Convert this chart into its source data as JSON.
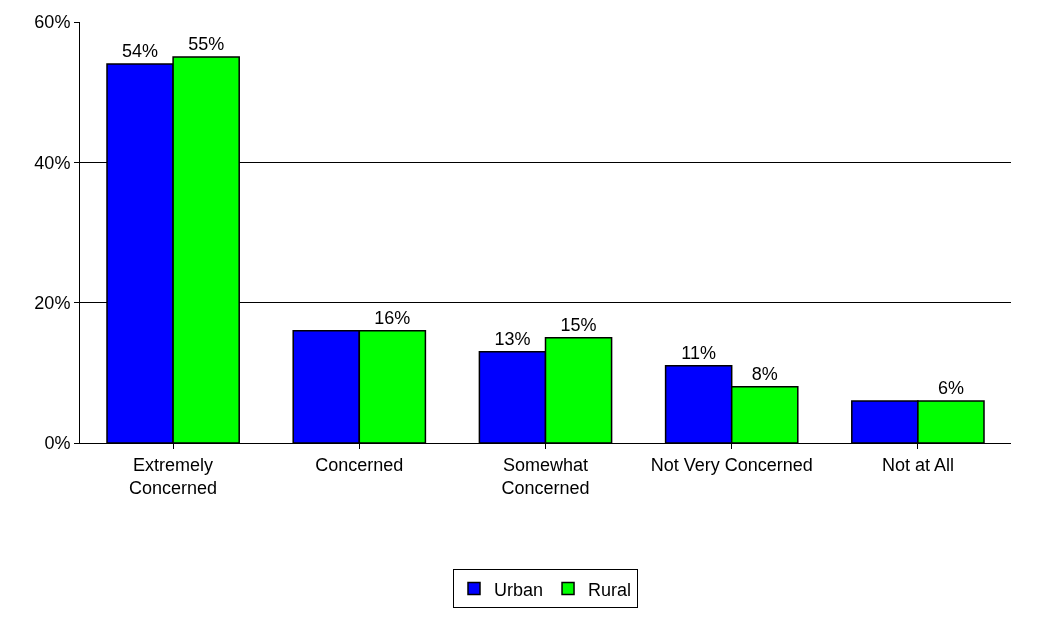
{
  "chart_data": {
    "type": "bar",
    "categories": [
      "Extremely Concerned",
      "Concerned",
      "Somewhat Concerned",
      "Not Very Concerned",
      "Not at All"
    ],
    "series": [
      {
        "name": "Urban",
        "color": "#0000ff",
        "values": [
          54,
          16,
          13,
          11,
          6
        ],
        "value_labels": [
          "54%",
          null,
          "13%",
          "11%",
          null
        ]
      },
      {
        "name": "Rural",
        "color": "#00ff00",
        "values": [
          55,
          16,
          15,
          8,
          6
        ],
        "value_labels": [
          "55%",
          "16%",
          "15%",
          "8%",
          "6%"
        ]
      }
    ],
    "ylim": [
      0,
      60
    ],
    "yticks": [
      {
        "value": 0,
        "label": "0%"
      },
      {
        "value": 20,
        "label": "20%"
      },
      {
        "value": 40,
        "label": "40%"
      },
      {
        "value": 60,
        "label": "60%"
      }
    ],
    "grid": "y",
    "legend": "bottom"
  }
}
